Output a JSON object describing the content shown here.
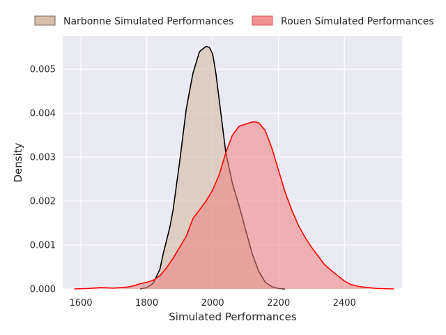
{
  "chart_data": {
    "type": "area",
    "xlabel": "Simulated Performances",
    "ylabel": "Density",
    "xlim": [
      1545,
      2575
    ],
    "ylim": [
      0,
      0.00575
    ],
    "xticks": [
      1600,
      1800,
      2000,
      2200,
      2400
    ],
    "yticks": [
      0.0,
      0.001,
      0.002,
      0.003,
      0.004,
      0.005
    ],
    "ytick_labels": [
      "0.000",
      "0.001",
      "0.002",
      "0.003",
      "0.004",
      "0.005"
    ],
    "grid": true,
    "legend_placement": "top, outside plot",
    "series": [
      {
        "name": "Narbonne Simulated Performances",
        "fill_color": "#d2b49c",
        "line_color": "#000000",
        "x": [
          1780,
          1800,
          1820,
          1840,
          1850,
          1860,
          1870,
          1880,
          1900,
          1920,
          1940,
          1960,
          1980,
          1990,
          2000,
          2010,
          2020,
          2040,
          2060,
          2080,
          2100,
          2120,
          2140,
          2160,
          2180,
          2200,
          2220
        ],
        "y": [
          0.0,
          3e-05,
          0.00013,
          0.00045,
          0.0008,
          0.0011,
          0.0014,
          0.0018,
          0.0029,
          0.0041,
          0.0049,
          0.0054,
          0.00552,
          0.0055,
          0.00535,
          0.0049,
          0.0043,
          0.0031,
          0.0024,
          0.0019,
          0.00135,
          0.0008,
          0.0004,
          0.00015,
          5e-05,
          1e-05,
          0.0
        ]
      },
      {
        "name": "Rouen Simulated Performances",
        "fill_color": "#f08080",
        "line_color": "#ff0000",
        "x": [
          1580,
          1620,
          1660,
          1700,
          1740,
          1760,
          1780,
          1800,
          1820,
          1840,
          1860,
          1880,
          1900,
          1920,
          1940,
          1960,
          1980,
          2000,
          2020,
          2040,
          2060,
          2080,
          2100,
          2120,
          2130,
          2140,
          2160,
          2180,
          2200,
          2220,
          2240,
          2260,
          2280,
          2300,
          2320,
          2340,
          2360,
          2380,
          2400,
          2420,
          2440,
          2460,
          2500,
          2550
        ],
        "y": [
          0.0,
          1e-05,
          3e-05,
          2e-05,
          4e-05,
          7e-05,
          0.00012,
          0.00015,
          0.0002,
          0.0003,
          0.00048,
          0.0007,
          0.00095,
          0.0012,
          0.0016,
          0.0018,
          0.002,
          0.00225,
          0.0026,
          0.0031,
          0.0035,
          0.0037,
          0.00375,
          0.0038,
          0.0038,
          0.00378,
          0.0036,
          0.0032,
          0.0027,
          0.0022,
          0.0018,
          0.00145,
          0.00118,
          0.00095,
          0.00075,
          0.00055,
          0.00042,
          0.0003,
          0.00018,
          0.0001,
          6e-05,
          4e-05,
          1e-05,
          0.0
        ]
      }
    ]
  }
}
